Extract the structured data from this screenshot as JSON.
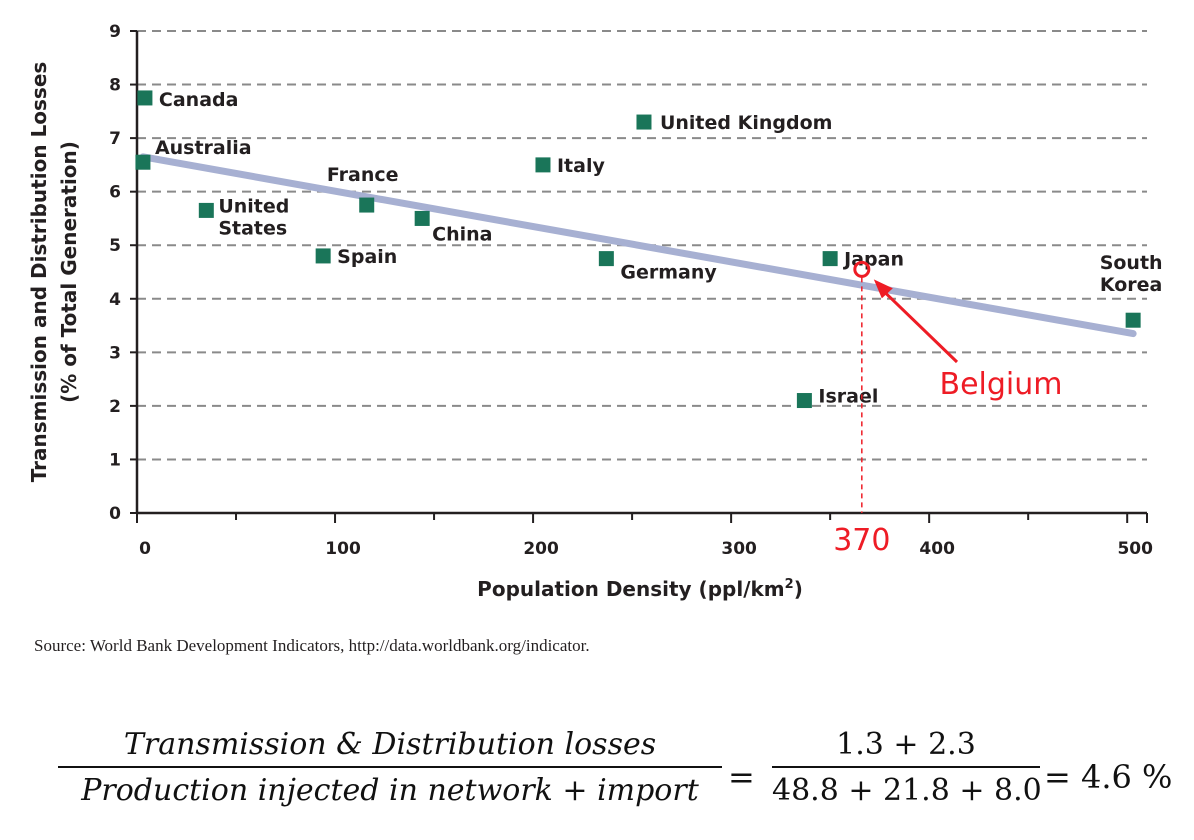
{
  "chart_data": {
    "type": "scatter",
    "xlabel_main": "Population Density (ppl/km",
    "xlabel_sup": "2",
    "xlabel_tail": ")",
    "ylabel_line1": "Transmission and Distribution Losses",
    "ylabel_line2": "(% of Total Generation)",
    "xlim": [
      0,
      510
    ],
    "ylim": [
      0,
      9
    ],
    "xticks": [
      "0",
      "100",
      "200",
      "300",
      "400",
      "500"
    ],
    "yticks": [
      "0",
      "1",
      "2",
      "3",
      "4",
      "5",
      "6",
      "7",
      "8",
      "9"
    ],
    "grid": "horizontal dashed",
    "points": [
      {
        "lines": [
          "Canada"
        ],
        "x": 4,
        "y": 7.75
      },
      {
        "lines": [
          "Australia"
        ],
        "x": 3,
        "y": 6.55
      },
      {
        "lines": [
          "United",
          "States"
        ],
        "x": 35,
        "y": 5.65
      },
      {
        "lines": [
          "France"
        ],
        "x": 116,
        "y": 5.75
      },
      {
        "lines": [
          "Spain"
        ],
        "x": 94,
        "y": 4.8
      },
      {
        "lines": [
          "China"
        ],
        "x": 144,
        "y": 5.5
      },
      {
        "lines": [
          "Italy"
        ],
        "x": 205,
        "y": 6.5
      },
      {
        "lines": [
          "United Kingdom"
        ],
        "x": 256,
        "y": 7.3
      },
      {
        "lines": [
          "Germany"
        ],
        "x": 237,
        "y": 4.75
      },
      {
        "lines": [
          "Japan"
        ],
        "x": 350,
        "y": 4.75
      },
      {
        "lines": [
          "Israel"
        ],
        "x": 337,
        "y": 2.1
      },
      {
        "lines": [
          "South",
          "Korea"
        ],
        "x": 503,
        "y": 3.6
      }
    ],
    "trendline": {
      "x": [
        3,
        503
      ],
      "y": [
        6.65,
        3.35
      ]
    },
    "highlight": {
      "label": "Belgium",
      "x": 366,
      "y": 4.55,
      "x_marker": "370"
    }
  },
  "source": "Source: World Bank Development Indicators, http://data.worldbank.org/indicator.",
  "formula": {
    "lhs_numerator": "Transmission & Distribution losses",
    "lhs_denominator": "Production injected in network + import",
    "equals": "=",
    "rhs_numerator": "1.3 + 2.3",
    "rhs_denominator": "48.8 + 21.8 + 8.0",
    "result": "= 4.6 %"
  },
  "colors": {
    "marker": "#1a7559",
    "trendline": "#a7b0d2",
    "grid": "#8a8a8a",
    "highlight": "#ee1c25",
    "text": "#231f20"
  }
}
